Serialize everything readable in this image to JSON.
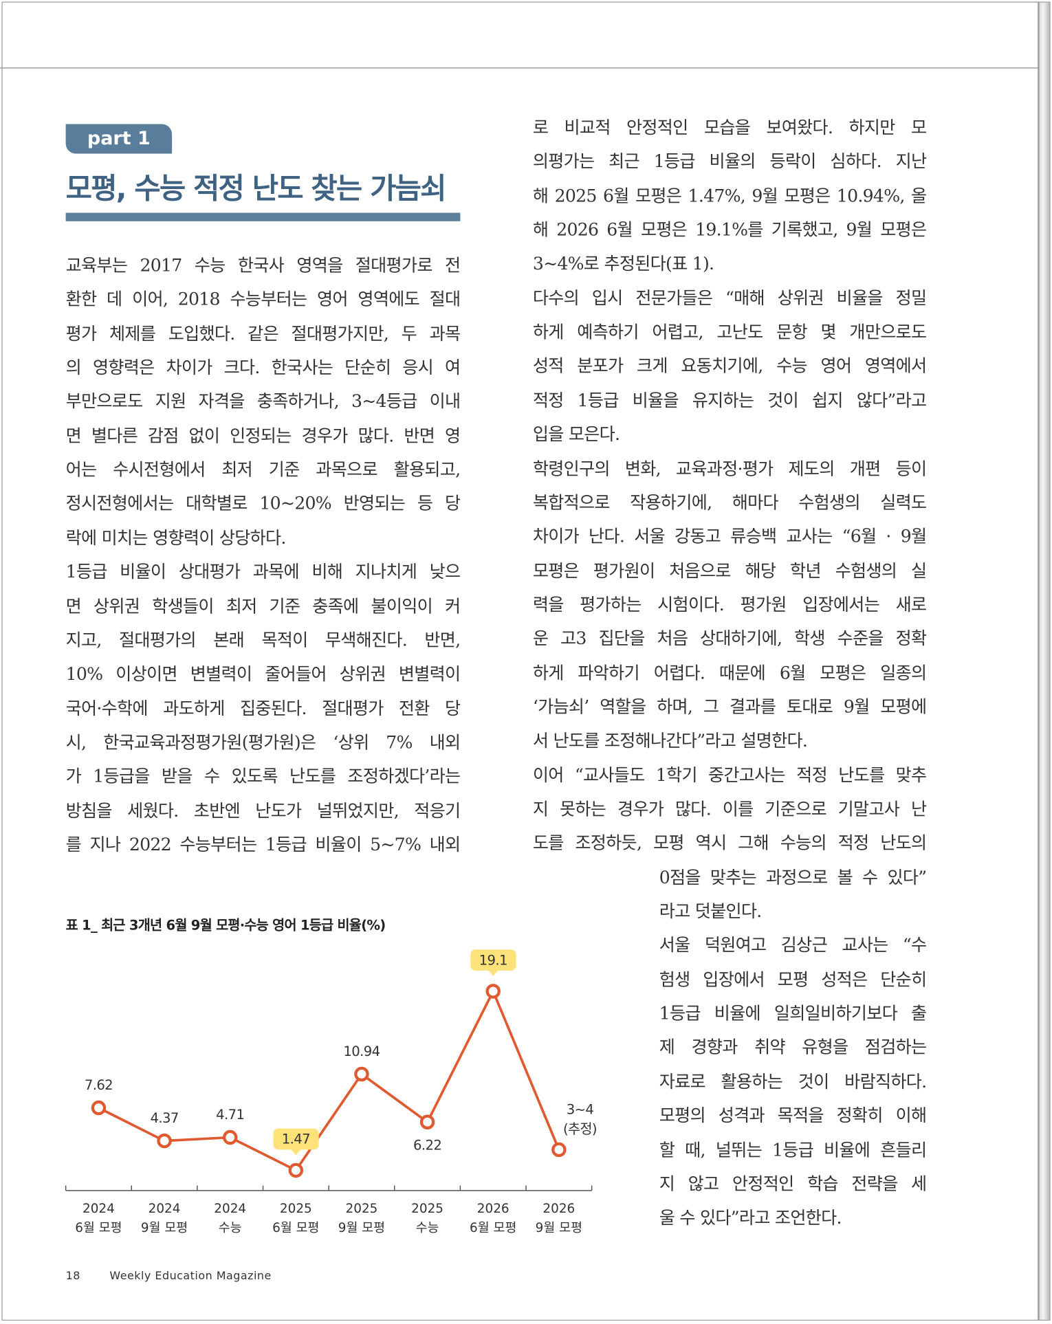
{
  "header": {
    "tag": "part 1",
    "title": "모평, 수능 적정 난도 찾는 가늠쇠"
  },
  "left_column": {
    "paragraphs": [
      [
        "교육부는 2017 수능 한국사 영역을 절대평가로 전",
        "환한 데 이어, 2018 수능부터는 영어 영역에도 절대",
        "평가 체제를 도입했다. 같은 절대평가지만, 두 과목",
        "의 영향력은 차이가 크다. 한국사는 단순히 응시 여",
        "부만으로도 지원 자격을 충족하거나, 3~4등급 이내",
        "면 별다른 감점 없이 인정되는 경우가 많다. 반면 영",
        "어는 수시전형에서 최저 기준 과목으로 활용되고,",
        "정시전형에서는 대학별로 10~20% 반영되는 등 당",
        "락에 미치는 영향력이 상당하다."
      ],
      [
        "1등급 비율이 상대평가 과목에 비해 지나치게 낮으",
        "면 상위권 학생들이 최저 기준 충족에 불이익이 커",
        "지고, 절대평가의 본래 목적이 무색해진다. 반면,",
        "10% 이상이면 변별력이 줄어들어 상위권 변별력이",
        "국어·수학에 과도하게 집중된다. 절대평가 전환 당",
        "시, 한국교육과정평가원(평가원)은 ‘상위 7% 내외",
        "가 1등급을 받을 수 있도록 난도를 조정하겠다’라는",
        "방침을 세웠다. 초반엔 난도가 널뛰었지만, 적응기",
        "를 지나 2022 수능부터는 1등급 비율이 5~7% 내외"
      ]
    ]
  },
  "right_column": {
    "paragraphs": [
      [
        "로 비교적 안정적인 모습을 보여왔다. 하지만 모",
        "의평가는 최근 1등급 비율의 등락이 심하다. 지난",
        "해 2025 6월 모평은 1.47%, 9월 모평은 10.94%, 올",
        "해 2026 6월 모평은 19.1%를 기록했고, 9월 모평은",
        "3~4%로 추정된다(표 1)."
      ],
      [
        "다수의 입시 전문가들은 “매해 상위권 비율을 정밀",
        "하게 예측하기 어렵고, 고난도 문항 몇 개만으로도",
        "성적 분포가 크게 요동치기에, 수능 영어 영역에서",
        "적정 1등급 비율을 유지하는 것이 쉽지 않다”라고",
        "입을 모은다."
      ],
      [
        "학령인구의 변화, 교육과정·평가 제도의 개편 등이",
        "복합적으로 작용하기에, 해마다 수험생의 실력도",
        "차이가 난다. 서울 강동고 류승백 교사는 “6월 · 9월",
        "모평은 평가원이 처음으로 해당 학년 수험생의 실",
        "력을 평가하는 시험이다. 평가원 입장에서는 새로",
        "운 고3 집단을 처음 상대하기에, 학생 수준을 정확",
        "하게 파악하기 어렵다. 때문에 6월 모평은 일종의",
        "‘가늠쇠’ 역할을 하며, 그 결과를 토대로 9월 모평에",
        "서 난도를 조정해나간다”라고 설명한다."
      ],
      [
        "이어 “교사들도 1학기 중간고사는 적정 난도를 맞추",
        "지 못하는 경우가 많다. 이를 기준으로 기말고사 난",
        "도를 조정하듯, 모평 역시 그해 수능의 적정 난도의"
      ]
    ]
  },
  "right_column_lower": {
    "paragraphs": [
      [
        "0점을 맞추는 과정으로 볼 수 있다”",
        "라고 덧붙인다."
      ],
      [
        "서울 덕원여고 김상근 교사는 “수",
        "험생 입장에서 모평 성적은 단순히",
        "1등급 비율에 일희일비하기보다 출",
        "제 경향과 취약 유형을 점검하는",
        "자료로 활용하는 것이 바람직하다.",
        "모평의 성격과 목적을 정확히 이해",
        "할 때, 널뛰는 1등급 비율에 흔들리",
        "지 않고 안정적인 학습 전략을 세",
        "울 수 있다”라고 조언한다."
      ]
    ]
  },
  "chart_data": {
    "type": "line",
    "title": "표 1_ 최근 3개년 6월 9월 모평·수능 영어 1등급 비율(%)",
    "categories": [
      [
        "2024",
        "6월 모평"
      ],
      [
        "2024",
        "9월 모평"
      ],
      [
        "2024",
        "수능"
      ],
      [
        "2025",
        "6월 모평"
      ],
      [
        "2025",
        "9월 모평"
      ],
      [
        "2025",
        "수능"
      ],
      [
        "2026",
        "6월 모평"
      ],
      [
        "2026",
        "9월 모평"
      ]
    ],
    "values": [
      7.62,
      4.37,
      4.71,
      1.47,
      10.94,
      6.22,
      19.1,
      3.5
    ],
    "value_labels": [
      "7.62",
      "4.37",
      "4.71",
      "1.47",
      "10.94",
      "6.22",
      "19.1",
      "3~4 (추정)"
    ],
    "color": "#e05a30",
    "highlighted": [
      3,
      6
    ],
    "highlight_color": "#fde27a",
    "ylim": [
      0,
      22
    ]
  },
  "footer": {
    "page": "18",
    "magazine": "Weekly Education Magazine"
  }
}
